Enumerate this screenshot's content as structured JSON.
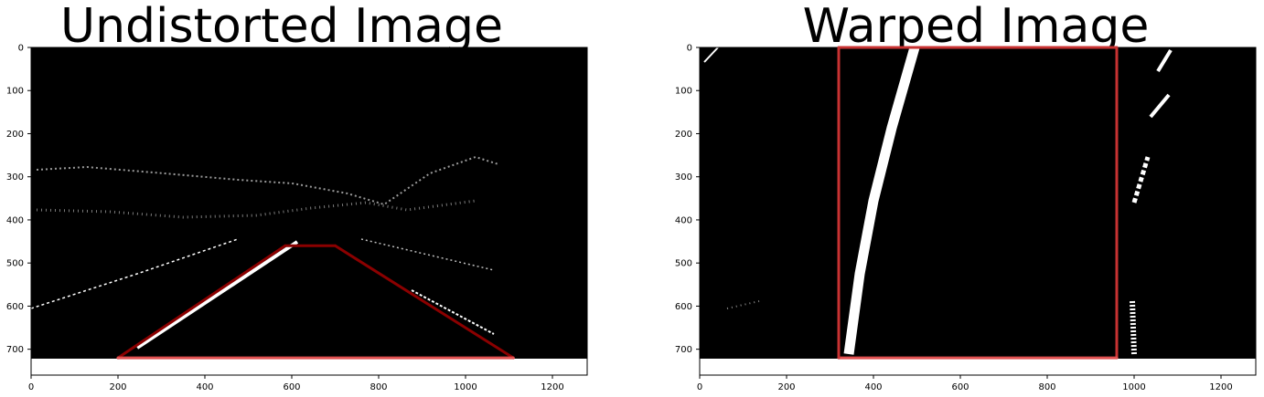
{
  "chart_data": [
    {
      "type": "image",
      "title": "Undistorted Image",
      "xlim": [
        0,
        1280
      ],
      "ylim": [
        760,
        0
      ],
      "image_height": 720,
      "x_ticks": [
        0,
        200,
        400,
        600,
        800,
        1000,
        1200
      ],
      "y_ticks": [
        0,
        100,
        200,
        300,
        400,
        500,
        600,
        700
      ],
      "overlay": {
        "shape": "polygon",
        "color": "#8b0000",
        "bottom_edge_color": "#e05050",
        "points": [
          [
            200,
            720
          ],
          [
            585,
            460
          ],
          [
            700,
            460
          ],
          [
            1110,
            720
          ]
        ]
      }
    },
    {
      "type": "image",
      "title": "Warped Image",
      "xlim": [
        0,
        1280
      ],
      "ylim": [
        760,
        0
      ],
      "image_height": 720,
      "x_ticks": [
        0,
        200,
        400,
        600,
        800,
        1000,
        1200
      ],
      "y_ticks": [
        0,
        100,
        200,
        300,
        400,
        500,
        600,
        700
      ],
      "overlay": {
        "shape": "rectangle",
        "color": "#c83232",
        "bottom_edge_color": "#e05050",
        "points": [
          [
            320,
            0
          ],
          [
            960,
            0
          ],
          [
            960,
            720
          ],
          [
            320,
            720
          ]
        ]
      }
    }
  ]
}
